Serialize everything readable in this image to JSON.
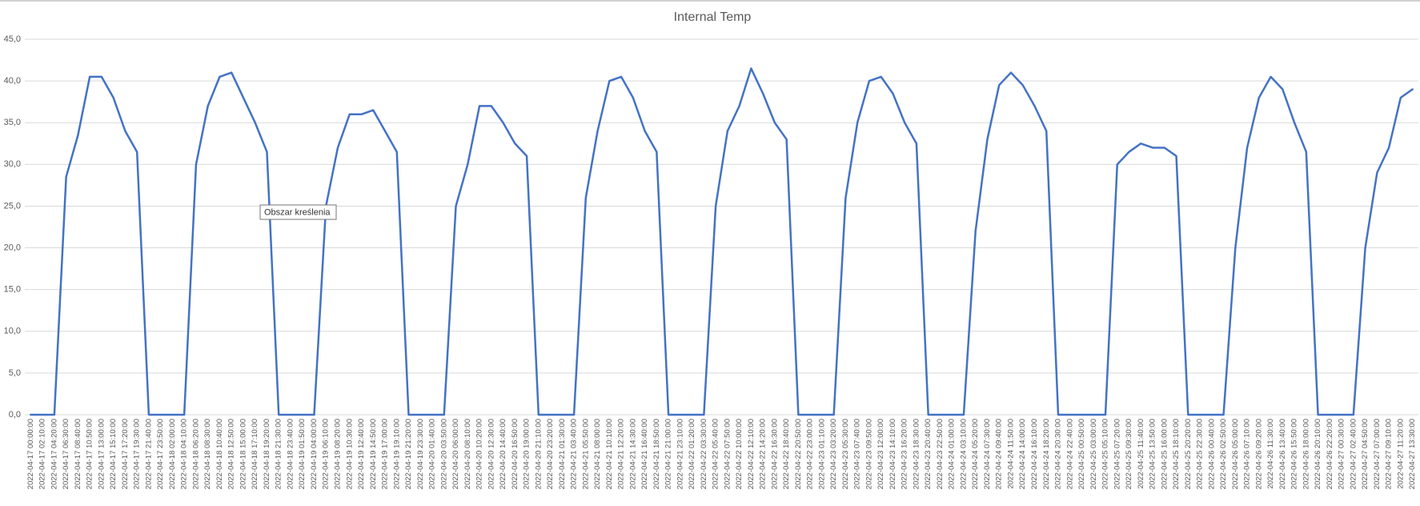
{
  "chart_data": {
    "type": "line",
    "title": "Internal Temp",
    "tooltip": "Obszar kreślenia",
    "color": "#4472c4",
    "grid": true,
    "ylim": [
      0,
      45
    ],
    "yticks": [
      {
        "value": 0,
        "label": "0,0"
      },
      {
        "value": 5,
        "label": "5,0"
      },
      {
        "value": 10,
        "label": "10,0"
      },
      {
        "value": 15,
        "label": "15,0"
      },
      {
        "value": 20,
        "label": "20,0"
      },
      {
        "value": 25,
        "label": "25,0"
      },
      {
        "value": 30,
        "label": "30,0"
      },
      {
        "value": 35,
        "label": "35,0"
      },
      {
        "value": 40,
        "label": "40,0"
      },
      {
        "value": 45,
        "label": "45,0"
      }
    ],
    "categories": [
      "2022-04-17 00:00:00",
      "2022-04-17 02:10:00",
      "2022-04-17 04:20:00",
      "2022-04-17 06:30:00",
      "2022-04-17 08:40:00",
      "2022-04-17 10:50:00",
      "2022-04-17 13:00:00",
      "2022-04-17 15:10:00",
      "2022-04-17 17:20:00",
      "2022-04-17 19:30:00",
      "2022-04-17 21:40:00",
      "2022-04-17 23:50:00",
      "2022-04-18 02:00:00",
      "2022-04-18 04:10:00",
      "2022-04-18 06:20:00",
      "2022-04-18 08:30:00",
      "2022-04-18 10:40:00",
      "2022-04-18 12:50:00",
      "2022-04-18 15:00:00",
      "2022-04-18 17:10:00",
      "2022-04-18 19:20:00",
      "2022-04-18 21:30:00",
      "2022-04-18 23:40:00",
      "2022-04-19 01:50:00",
      "2022-04-19 04:00:00",
      "2022-04-19 06:10:00",
      "2022-04-19 08:20:00",
      "2022-04-19 10:30:00",
      "2022-04-19 12:40:00",
      "2022-04-19 14:50:00",
      "2022-04-19 17:00:00",
      "2022-04-19 19:10:00",
      "2022-04-19 21:20:00",
      "2022-04-19 23:30:00",
      "2022-04-20 01:40:00",
      "2022-04-20 03:50:00",
      "2022-04-20 06:00:00",
      "2022-04-20 08:10:00",
      "2022-04-20 10:20:00",
      "2022-04-20 12:30:00",
      "2022-04-20 14:40:00",
      "2022-04-20 16:50:00",
      "2022-04-20 19:00:00",
      "2022-04-20 21:10:00",
      "2022-04-20 23:20:00",
      "2022-04-21 01:30:00",
      "2022-04-21 03:40:00",
      "2022-04-21 05:50:00",
      "2022-04-21 08:00:00",
      "2022-04-21 10:10:00",
      "2022-04-21 12:20:00",
      "2022-04-21 14:30:00",
      "2022-04-21 16:40:00",
      "2022-04-21 18:50:00",
      "2022-04-21 21:00:00",
      "2022-04-21 23:10:00",
      "2022-04-22 01:20:00",
      "2022-04-22 03:30:00",
      "2022-04-22 05:40:00",
      "2022-04-22 07:50:00",
      "2022-04-22 10:00:00",
      "2022-04-22 12:10:00",
      "2022-04-22 14:20:00",
      "2022-04-22 16:30:00",
      "2022-04-22 18:40:00",
      "2022-04-22 20:50:00",
      "2022-04-22 23:00:00",
      "2022-04-23 01:10:00",
      "2022-04-23 03:20:00",
      "2022-04-23 05:30:00",
      "2022-04-23 07:40:00",
      "2022-04-23 09:50:00",
      "2022-04-23 12:00:00",
      "2022-04-23 14:10:00",
      "2022-04-23 16:20:00",
      "2022-04-23 18:30:00",
      "2022-04-23 20:40:00",
      "2022-04-23 22:50:00",
      "2022-04-24 01:00:00",
      "2022-04-24 03:10:00",
      "2022-04-24 05:20:00",
      "2022-04-24 07:30:00",
      "2022-04-24 09:40:00",
      "2022-04-24 11:50:00",
      "2022-04-24 14:00:00",
      "2022-04-24 16:10:00",
      "2022-04-24 18:20:00",
      "2022-04-24 20:30:00",
      "2022-04-24 22:40:00",
      "2022-04-25 00:50:00",
      "2022-04-25 03:00:00",
      "2022-04-25 05:10:00",
      "2022-04-25 07:20:00",
      "2022-04-25 09:30:00",
      "2022-04-25 11:40:00",
      "2022-04-25 13:50:00",
      "2022-04-25 16:00:00",
      "2022-04-25 18:10:00",
      "2022-04-25 20:20:00",
      "2022-04-25 22:30:00",
      "2022-04-26 00:40:00",
      "2022-04-26 02:50:00",
      "2022-04-26 05:00:00",
      "2022-04-26 07:10:00",
      "2022-04-26 09:20:00",
      "2022-04-26 11:30:00",
      "2022-04-26 13:40:00",
      "2022-04-26 15:50:00",
      "2022-04-26 18:00:00",
      "2022-04-26 20:10:00",
      "2022-04-26 22:20:00",
      "2022-04-27 00:30:00",
      "2022-04-27 02:40:00",
      "2022-04-27 04:50:00",
      "2022-04-27 07:00:00",
      "2022-04-27 09:10:00",
      "2022-04-27 11:20:00",
      "2022-04-27 13:30:00"
    ],
    "values": [
      0,
      0,
      0,
      28.5,
      33.5,
      40.5,
      40.5,
      38,
      34,
      31.5,
      0,
      0,
      0,
      0,
      30,
      37,
      40.5,
      41,
      38,
      35,
      31.5,
      0,
      0,
      0,
      0,
      25,
      32,
      36,
      36,
      36.5,
      34,
      31.5,
      0,
      0,
      0,
      0,
      25,
      30,
      37,
      37,
      35,
      32.5,
      31,
      0,
      0,
      0,
      0,
      26,
      34,
      40,
      40.5,
      38,
      34,
      31.5,
      0,
      0,
      0,
      0,
      25,
      34,
      37,
      41.5,
      38.5,
      35,
      33,
      0,
      0,
      0,
      0,
      26,
      35,
      40,
      40.5,
      38.5,
      35,
      32.5,
      0,
      0,
      0,
      0,
      22,
      33,
      39.5,
      41,
      39.5,
      37,
      34,
      0,
      0,
      0,
      0,
      0,
      30,
      31.5,
      32.5,
      32,
      32,
      31,
      0,
      0,
      0,
      0,
      20,
      32,
      38,
      40.5,
      39,
      35,
      31.5,
      0,
      0,
      0,
      0,
      20,
      29,
      32,
      38,
      39
    ]
  }
}
